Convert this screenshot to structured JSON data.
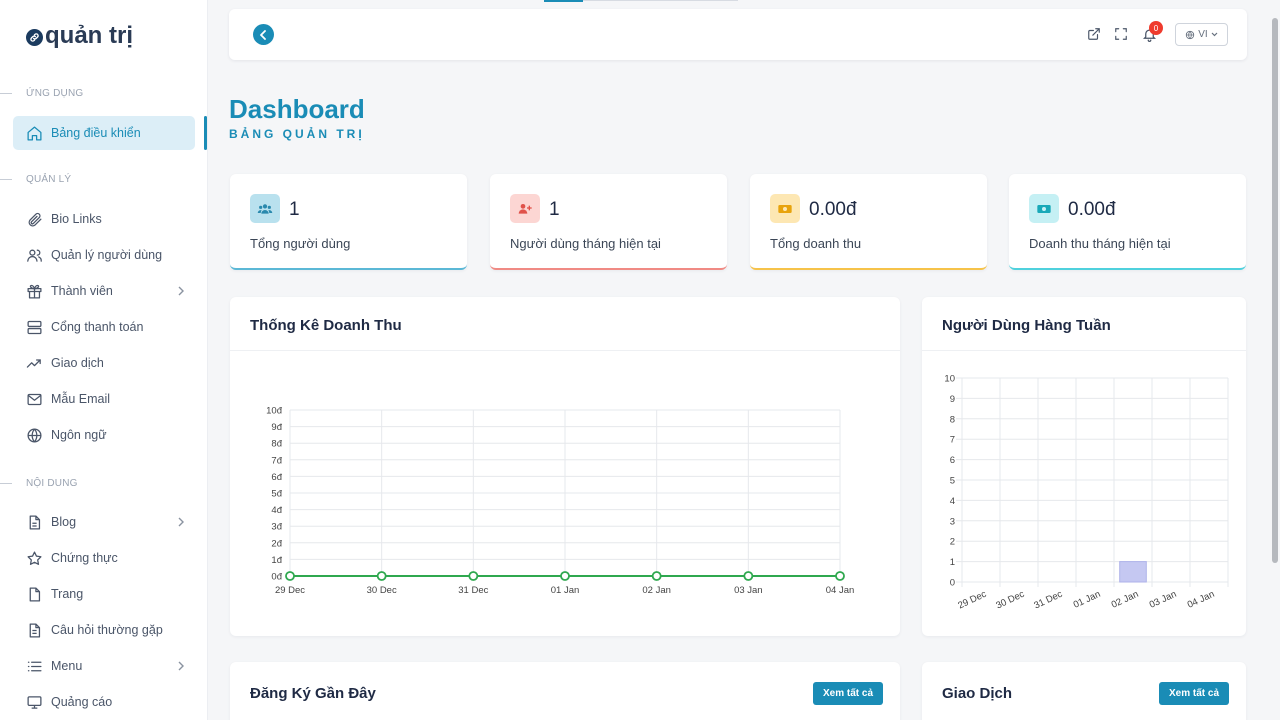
{
  "brand": {
    "name": "quản trị"
  },
  "sidebar": {
    "sections": [
      {
        "label": "ỨNG DỤNG"
      },
      {
        "label": "QUẢN LÝ"
      },
      {
        "label": "NỘI DUNG"
      }
    ],
    "items": [
      {
        "label": "Bảng điều khiển",
        "icon": "home-icon",
        "active": true
      },
      {
        "label": "Bio Links",
        "icon": "paperclip-icon"
      },
      {
        "label": "Quản lý người dùng",
        "icon": "users-icon"
      },
      {
        "label": "Thành viên",
        "icon": "gift-icon",
        "submenu": true
      },
      {
        "label": "Cổng thanh toán",
        "icon": "server-icon"
      },
      {
        "label": "Giao dịch",
        "icon": "trending-up-icon"
      },
      {
        "label": "Mẫu Email",
        "icon": "mail-icon"
      },
      {
        "label": "Ngôn ngữ",
        "icon": "globe-icon"
      },
      {
        "label": "Blog",
        "icon": "document-icon",
        "submenu": true
      },
      {
        "label": "Chứng thực",
        "icon": "star-icon"
      },
      {
        "label": "Trang",
        "icon": "file-icon"
      },
      {
        "label": "Câu hỏi thường gặp",
        "icon": "file-text-icon"
      },
      {
        "label": "Menu",
        "icon": "list-icon",
        "submenu": true
      },
      {
        "label": "Quảng cáo",
        "icon": "monitor-icon"
      }
    ]
  },
  "topbar": {
    "notification_count": "0",
    "language": "VI"
  },
  "header": {
    "title": "Dashboard",
    "subtitle": "BẢNG QUẢN TRỊ"
  },
  "stats": [
    {
      "value": "1",
      "label": "Tổng người dùng",
      "color": "#5bb8d6",
      "icon": "users-icon"
    },
    {
      "value": "1",
      "label": "Người dùng tháng hiện tại",
      "color": "#f08a84",
      "icon": "user-plus-icon"
    },
    {
      "value": "0.00đ",
      "label": "Tổng doanh thu",
      "color": "#f6c34a",
      "icon": "money-icon"
    },
    {
      "value": "0.00đ",
      "label": "Doanh thu tháng hiện tại",
      "color": "#4fd1dd",
      "icon": "money-icon"
    }
  ],
  "panels": {
    "revenue": {
      "title": "Thống Kê Doanh Thu"
    },
    "weekly_users": {
      "title": "Người Dùng Hàng Tuần"
    },
    "recent_signups": {
      "title": "Đăng Ký Gần Đây",
      "button": "Xem tất cả"
    },
    "transactions": {
      "title": "Giao Dịch",
      "button": "Xem tất cả"
    }
  },
  "chart_data": [
    {
      "type": "line",
      "categories": [
        "29 Dec",
        "30 Dec",
        "31 Dec",
        "01 Jan",
        "02 Jan",
        "03 Jan",
        "04 Jan"
      ],
      "series": [
        {
          "values": [
            0,
            0,
            0,
            0,
            0,
            0,
            0
          ],
          "color": "#2fa84f"
        }
      ],
      "ylim": [
        0,
        10
      ],
      "yticks": [
        "0đ",
        "1đ",
        "2đ",
        "3đ",
        "4đ",
        "5đ",
        "6đ",
        "7đ",
        "8đ",
        "9đ",
        "10đ"
      ],
      "grid": true
    },
    {
      "type": "bar",
      "categories": [
        "29 Dec",
        "30 Dec",
        "31 Dec",
        "01 Jan",
        "02 Jan",
        "03 Jan",
        "04 Jan"
      ],
      "series": [
        {
          "values": [
            0,
            0,
            0,
            0,
            1,
            0,
            0
          ],
          "color": "#c5c8f2"
        }
      ],
      "ylim": [
        0,
        10
      ],
      "yticks": [
        "0",
        "1",
        "2",
        "3",
        "4",
        "5",
        "6",
        "7",
        "8",
        "9",
        "10"
      ],
      "grid": true
    }
  ]
}
